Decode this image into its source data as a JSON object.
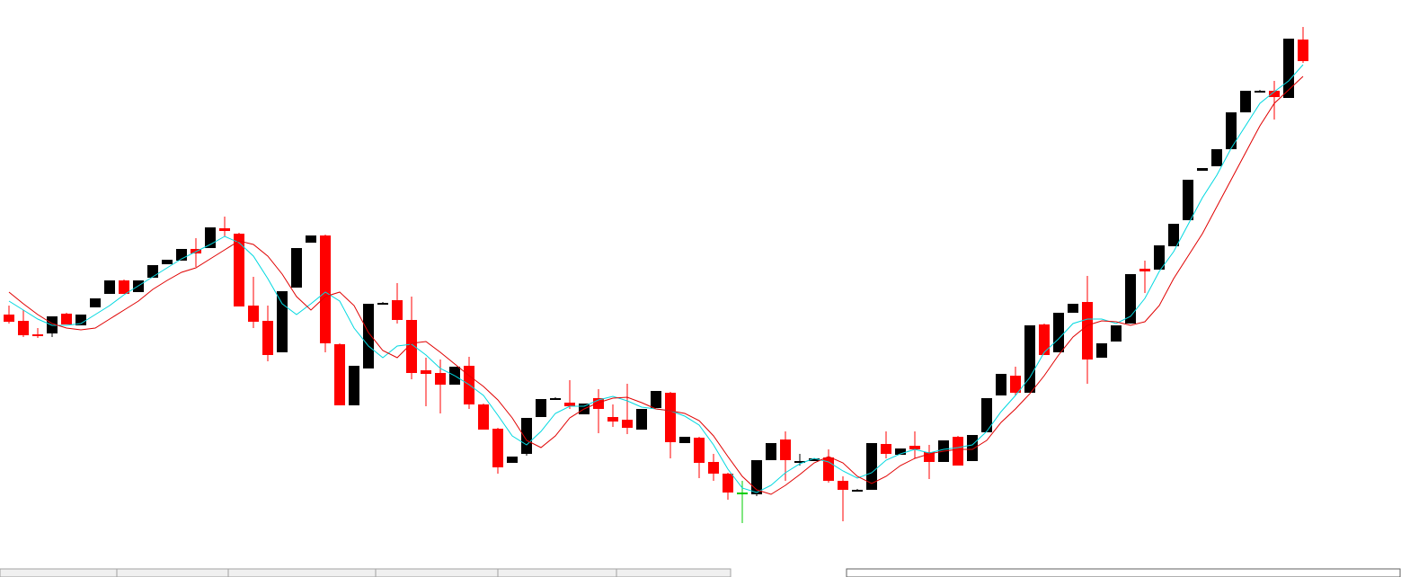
{
  "chart_data": {
    "type": "candlestick",
    "ylim": [
      0,
      640
    ],
    "up_color": "#000000",
    "down_color": "#ff0000",
    "doji_color": "#00cc00",
    "open": [
      290,
      283,
      268,
      269,
      291,
      278,
      298,
      313,
      328,
      315,
      331,
      346,
      350,
      363,
      364,
      386,
      380,
      300,
      283,
      248,
      320,
      370,
      378,
      257,
      189,
      230,
      302,
      306,
      284,
      228,
      225,
      212,
      233,
      190,
      163,
      125,
      135,
      176,
      196,
      192,
      179,
      197,
      176,
      173,
      162,
      186,
      203,
      147,
      153,
      126,
      113,
      92,
      90,
      128,
      151,
      126,
      127,
      131,
      105,
      94,
      95,
      146,
      134,
      144,
      137,
      126,
      154,
      127,
      159,
      200,
      222,
      203,
      279,
      248,
      292,
      304,
      242,
      260,
      280,
      341,
      340,
      366,
      395,
      450,
      455,
      474,
      515,
      538,
      539,
      531,
      596
    ],
    "high": [
      300,
      295,
      275,
      288,
      292,
      290,
      308,
      328,
      329,
      328,
      345,
      351,
      363,
      375,
      387,
      399,
      381,
      332,
      300,
      316,
      364,
      378,
      379,
      258,
      233,
      302,
      304,
      325,
      310,
      242,
      240,
      232,
      243,
      191,
      164,
      132,
      175,
      196,
      198,
      217,
      191,
      207,
      190,
      213,
      185,
      205,
      204,
      154,
      154,
      135,
      114,
      105,
      128,
      147,
      160,
      135,
      130,
      140,
      110,
      96,
      147,
      160,
      141,
      160,
      145,
      150,
      155,
      156,
      197,
      224,
      232,
      278,
      280,
      292,
      302,
      333,
      258,
      278,
      335,
      350,
      367,
      391,
      440,
      453,
      474,
      515,
      539,
      540,
      550,
      597,
      610
    ],
    "low": [
      280,
      265,
      264,
      265,
      279,
      278,
      298,
      313,
      313,
      315,
      331,
      346,
      350,
      343,
      364,
      377,
      299,
      275,
      238,
      248,
      320,
      370,
      248,
      189,
      189,
      230,
      302,
      280,
      218,
      188,
      180,
      212,
      185,
      162,
      113,
      125,
      133,
      176,
      196,
      185,
      179,
      158,
      165,
      157,
      162,
      186,
      130,
      147,
      108,
      105,
      84,
      58,
      88,
      128,
      105,
      122,
      127,
      103,
      60,
      94,
      95,
      130,
      134,
      130,
      107,
      126,
      122,
      127,
      159,
      200,
      200,
      203,
      245,
      248,
      292,
      213,
      242,
      260,
      280,
      314,
      340,
      366,
      395,
      450,
      455,
      474,
      515,
      538,
      507,
      531,
      570
    ],
    "close": [
      282,
      267,
      267,
      288,
      279,
      290,
      308,
      328,
      313,
      328,
      345,
      351,
      363,
      358,
      387,
      383,
      299,
      282,
      245,
      316,
      364,
      378,
      258,
      189,
      233,
      302,
      303,
      284,
      225,
      224,
      212,
      232,
      190,
      162,
      120,
      132,
      175,
      196,
      197,
      188,
      191,
      185,
      171,
      164,
      185,
      205,
      148,
      154,
      125,
      113,
      92,
      92,
      128,
      147,
      128,
      127,
      130,
      105,
      95,
      95,
      147,
      135,
      141,
      140,
      126,
      150,
      122,
      156,
      197,
      224,
      203,
      278,
      245,
      292,
      302,
      240,
      258,
      278,
      335,
      338,
      367,
      391,
      440,
      453,
      474,
      515,
      539,
      539,
      532,
      597,
      572
    ],
    "lines": [
      {
        "color": "#00d8e0",
        "values": [
          305,
          295,
          285,
          278,
          278,
          280,
          290,
          300,
          312,
          322,
          332,
          342,
          352,
          360,
          368,
          377,
          370,
          355,
          330,
          302,
          290,
          302,
          315,
          305,
          275,
          255,
          242,
          255,
          257,
          245,
          230,
          222,
          212,
          200,
          178,
          155,
          145,
          160,
          180,
          188,
          188,
          195,
          199,
          194,
          187,
          185,
          183,
          177,
          167,
          145,
          118,
          97,
          92,
          100,
          114,
          124,
          130,
          126,
          116,
          108,
          114,
          128,
          135,
          140,
          136,
          140,
          142,
          145,
          160,
          182,
          200,
          220,
          248,
          263,
          280,
          285,
          285,
          280,
          288,
          308,
          338,
          360,
          390,
          420,
          445,
          475,
          500,
          525,
          538,
          550,
          568
        ]
      },
      {
        "color": "#e00000",
        "values": [
          315,
          302,
          290,
          280,
          275,
          273,
          275,
          285,
          295,
          305,
          318,
          328,
          337,
          342,
          352,
          362,
          372,
          368,
          355,
          335,
          310,
          295,
          310,
          315,
          300,
          270,
          250,
          242,
          258,
          260,
          248,
          235,
          222,
          210,
          195,
          175,
          150,
          142,
          155,
          175,
          185,
          192,
          197,
          198,
          192,
          185,
          183,
          180,
          172,
          155,
          132,
          110,
          95,
          90,
          100,
          112,
          125,
          132,
          125,
          110,
          102,
          110,
          122,
          130,
          135,
          138,
          140,
          140,
          150,
          170,
          185,
          202,
          222,
          245,
          265,
          278,
          283,
          282,
          278,
          282,
          300,
          330,
          355,
          380,
          410,
          440,
          470,
          500,
          525,
          540,
          555
        ]
      }
    ]
  }
}
